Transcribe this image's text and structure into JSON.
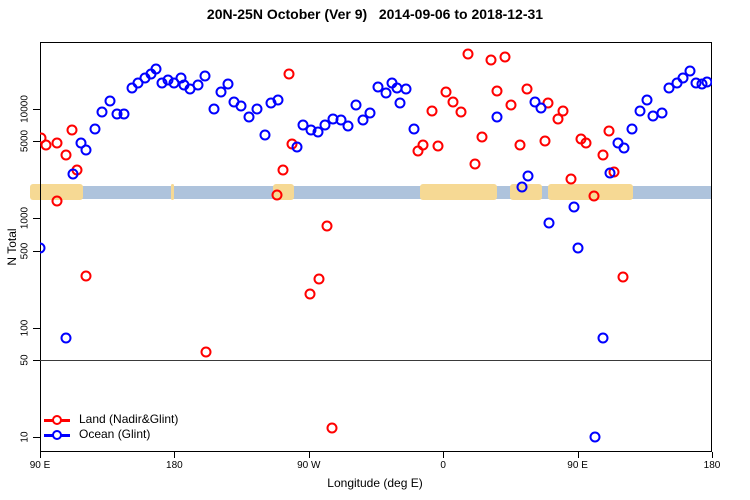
{
  "title": "20N-25N October (Ver 9)   2014-09-06 to 2018-12-31",
  "chart_data": {
    "type": "scatter",
    "title": "20N-25N October (Ver 9)   2014-09-06 to 2018-12-31",
    "xlabel": "Longitude (deg E)",
    "ylabel": "N Total",
    "x_axis": {
      "span_deg": 450,
      "ticks": [
        {
          "label": "90 E",
          "deg": 0
        },
        {
          "label": "180",
          "deg": 90
        },
        {
          "label": "90 W",
          "deg": 180
        },
        {
          "label": "0",
          "deg": 270
        },
        {
          "label": "90 E",
          "deg": 360
        },
        {
          "label": "180",
          "deg": 450
        }
      ]
    },
    "y_axis": {
      "scale": "log",
      "ylim": [
        7.3,
        40000
      ],
      "ticks": [
        {
          "label": "10",
          "value": 10
        },
        {
          "label": "50",
          "value": 50
        },
        {
          "label": "100",
          "value": 100
        },
        {
          "label": "500",
          "value": 500
        },
        {
          "label": "1000",
          "value": 1000
        },
        {
          "label": "5000",
          "value": 5000
        },
        {
          "label": "10000",
          "value": 10000
        }
      ]
    },
    "reference_line_value": 50,
    "map_strip": {
      "ocean_color": "#aec3dc",
      "land_color": "#f6d994",
      "center_value": 1700,
      "land_segments_deg": [
        [
          -7,
          29
        ],
        [
          88,
          90
        ],
        [
          156,
          170
        ],
        [
          254.5,
          306
        ],
        [
          315,
          336
        ],
        [
          340,
          397
        ]
      ]
    },
    "series": [
      {
        "name": "Land (Nadir&Glint)",
        "color": "#ff0000",
        "points_deg_value": [
          [
            0.7,
            5400
          ],
          [
            4,
            4640
          ],
          [
            11.4,
            4830
          ],
          [
            17.4,
            3760
          ],
          [
            21.4,
            6360
          ],
          [
            24.8,
            2740
          ],
          [
            11.4,
            1430
          ],
          [
            30.8,
            296
          ],
          [
            111.2,
            60
          ],
          [
            166.7,
            20600
          ],
          [
            168.7,
            4730
          ],
          [
            162.7,
            2740
          ],
          [
            158.7,
            1620
          ],
          [
            192.2,
            845
          ],
          [
            186.8,
            278
          ],
          [
            180.8,
            203
          ],
          [
            195.5,
            12
          ],
          [
            253.1,
            4090
          ],
          [
            256.4,
            4640
          ],
          [
            266.5,
            4540
          ],
          [
            262.5,
            9480
          ],
          [
            271.8,
            14200
          ],
          [
            276.5,
            11500
          ],
          [
            281.9,
            9280
          ],
          [
            286.5,
            31400
          ],
          [
            301.9,
            27700
          ],
          [
            311.3,
            29500
          ],
          [
            306,
            14400
          ],
          [
            315.3,
            10800
          ],
          [
            295.9,
            5490
          ],
          [
            291.3,
            3110
          ],
          [
            321.4,
            4640
          ],
          [
            326.1,
            15000
          ],
          [
            338.1,
            5060
          ],
          [
            340.1,
            11300
          ],
          [
            346.8,
            8020
          ],
          [
            350.2,
            9480
          ],
          [
            355.5,
            2270
          ],
          [
            362.2,
            5240
          ],
          [
            365.6,
            4830
          ],
          [
            371,
            1590
          ],
          [
            377,
            3760
          ],
          [
            381,
            6230
          ],
          [
            384.4,
            2630
          ],
          [
            390.4,
            290
          ]
        ]
      },
      {
        "name": "Ocean (Glint)",
        "color": "#0000ff",
        "points_deg_value": [
          [
            0,
            533
          ],
          [
            17.4,
            80
          ],
          [
            22.1,
            2520
          ],
          [
            27.5,
            4830
          ],
          [
            30.8,
            4170
          ],
          [
            36.8,
            6500
          ],
          [
            41.5,
            9280
          ],
          [
            46.9,
            11700
          ],
          [
            51.6,
            8900
          ],
          [
            56.2,
            8900
          ],
          [
            61.6,
            15400
          ],
          [
            65.6,
            17100
          ],
          [
            70.3,
            18900
          ],
          [
            74.3,
            20600
          ],
          [
            77.7,
            22900
          ],
          [
            81.7,
            17100
          ],
          [
            85.7,
            18200
          ],
          [
            89.7,
            17100
          ],
          [
            94.4,
            18900
          ],
          [
            96.4,
            16400
          ],
          [
            100.4,
            15000
          ],
          [
            105.8,
            16400
          ],
          [
            110.5,
            19800
          ],
          [
            116.5,
            9900
          ],
          [
            121.2,
            14200
          ],
          [
            125.9,
            16700
          ],
          [
            129.9,
            11500
          ],
          [
            134.6,
            10500
          ],
          [
            139.9,
            8350
          ],
          [
            145.3,
            9900
          ],
          [
            150.7,
            5730
          ],
          [
            154.7,
            11300
          ],
          [
            159.4,
            11900
          ],
          [
            172.1,
            4440
          ],
          [
            176.1,
            7070
          ],
          [
            181.5,
            6360
          ],
          [
            186.1,
            6090
          ],
          [
            190.8,
            7070
          ],
          [
            196.2,
            8020
          ],
          [
            201.6,
            7850
          ],
          [
            206.2,
            6940
          ],
          [
            211.6,
            10800
          ],
          [
            216.3,
            7850
          ],
          [
            221,
            9100
          ],
          [
            226.3,
            15700
          ],
          [
            231.7,
            13900
          ],
          [
            235.7,
            17100
          ],
          [
            239,
            15400
          ],
          [
            241.1,
            11300
          ],
          [
            245.1,
            15000
          ],
          [
            250.4,
            6500
          ],
          [
            306,
            8350
          ],
          [
            322.7,
            1920
          ],
          [
            326.7,
            2420
          ],
          [
            331.4,
            11500
          ],
          [
            335.4,
            10100
          ],
          [
            340.8,
            900
          ],
          [
            357.5,
            1260
          ],
          [
            360.2,
            533
          ],
          [
            371.6,
            10
          ],
          [
            377,
            80
          ],
          [
            381.7,
            2570
          ],
          [
            387,
            4830
          ],
          [
            391,
            4350
          ],
          [
            396.4,
            6500
          ],
          [
            401.7,
            9480
          ],
          [
            406.4,
            11900
          ],
          [
            410.4,
            8550
          ],
          [
            416.5,
            9100
          ],
          [
            421.1,
            15400
          ],
          [
            426.5,
            17100
          ],
          [
            430.5,
            18900
          ],
          [
            435.2,
            21900
          ],
          [
            439.2,
            17100
          ],
          [
            443.2,
            16700
          ],
          [
            446.6,
            17500
          ]
        ]
      }
    ]
  },
  "legend": {
    "items": [
      {
        "label": "Land (Nadir&Glint)",
        "color": "#ff0000"
      },
      {
        "label": "Ocean (Glint)",
        "color": "#0000ff"
      }
    ]
  }
}
